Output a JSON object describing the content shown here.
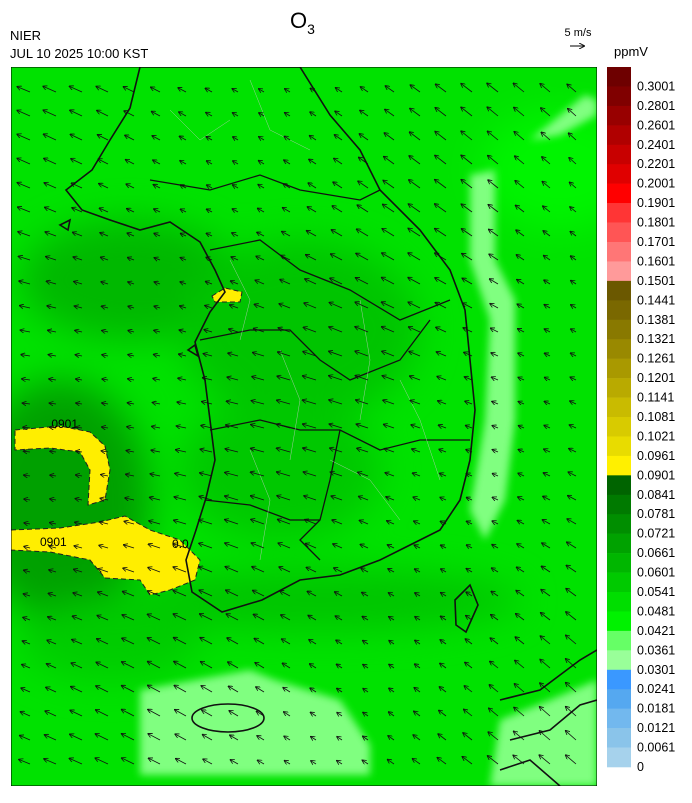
{
  "header": {
    "agency": "NIER",
    "datetime": "JUL 10 2025 10:00 KST",
    "title": {
      "text": "O",
      "subscript": "3"
    },
    "wind_reference": "5 m/s"
  },
  "colorbar": {
    "unit": "ppmV",
    "levels": [
      0.3001,
      0.2801,
      0.2601,
      0.2401,
      0.2201,
      0.2001,
      0.1901,
      0.1801,
      0.1701,
      0.1601,
      0.1501,
      0.1441,
      0.1381,
      0.1321,
      0.1261,
      0.1201,
      0.1141,
      0.1081,
      0.1021,
      0.0961,
      0.0901,
      0.0841,
      0.0781,
      0.0721,
      0.0661,
      0.0601,
      0.0541,
      0.0481,
      0.0421,
      0.0361,
      0.0301,
      0.0241,
      0.0181,
      0.0121,
      0.0061,
      0
    ],
    "colors": [
      "#6e0000",
      "#800000",
      "#980000",
      "#b00000",
      "#c80000",
      "#e00000",
      "#ff0000",
      "#ff3535",
      "#ff5555",
      "#ff7676",
      "#ff9a9a",
      "#6b5800",
      "#7a6800",
      "#897900",
      "#998900",
      "#a99900",
      "#b9aa00",
      "#c9bb00",
      "#d8cb00",
      "#e8dc00",
      "#fff000",
      "#006400",
      "#007a00",
      "#008e00",
      "#00a200",
      "#00b600",
      "#00ca00",
      "#00de00",
      "#00f200",
      "#66ff66",
      "#99ff99",
      "#3a98ff",
      "#55a8f0",
      "#72b8ee",
      "#8ac4ea",
      "#a6d2ec"
    ]
  },
  "map": {
    "contour_labels": [
      ".0901",
      "0901",
      "0.0"
    ]
  }
}
